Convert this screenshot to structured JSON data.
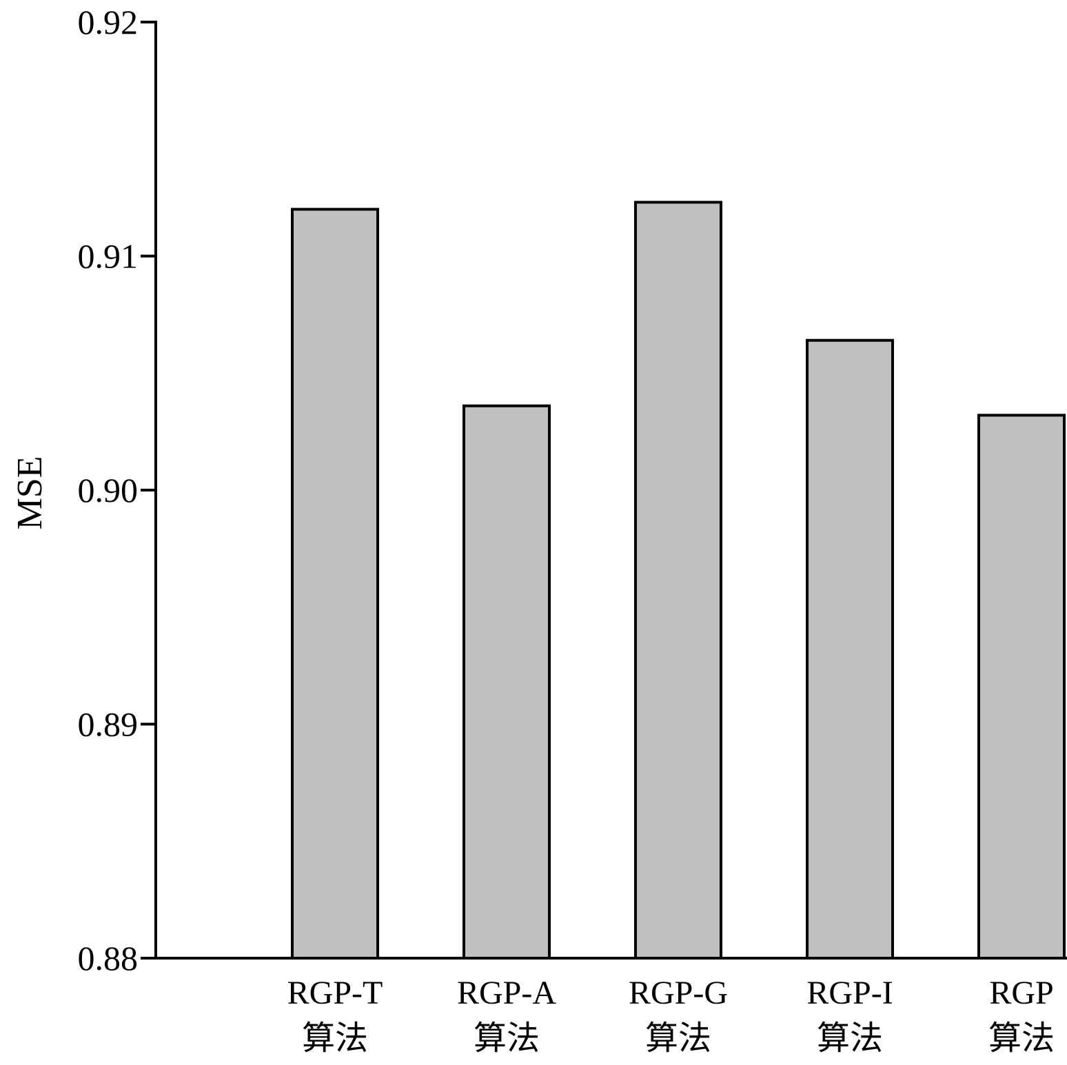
{
  "chart_data": {
    "type": "bar",
    "title": "",
    "xlabel": "",
    "ylabel": "MSE",
    "ylim": [
      0.88,
      0.92
    ],
    "yticks": [
      "0.88",
      "0.89",
      "0.90",
      "0.91",
      "0.92"
    ],
    "categories": [
      [
        "RGP-T",
        "算法"
      ],
      [
        "RGP-A",
        "算法"
      ],
      [
        "RGP-G",
        "算法"
      ],
      [
        "RGP-I",
        "算法"
      ],
      [
        "RGP",
        "算法"
      ]
    ],
    "values": [
      0.912,
      0.9036,
      0.9123,
      0.9064,
      0.9032
    ],
    "bar_color": "#c0c0c0",
    "bar_edge_color": "#000000",
    "grid": false,
    "legend": "none"
  }
}
